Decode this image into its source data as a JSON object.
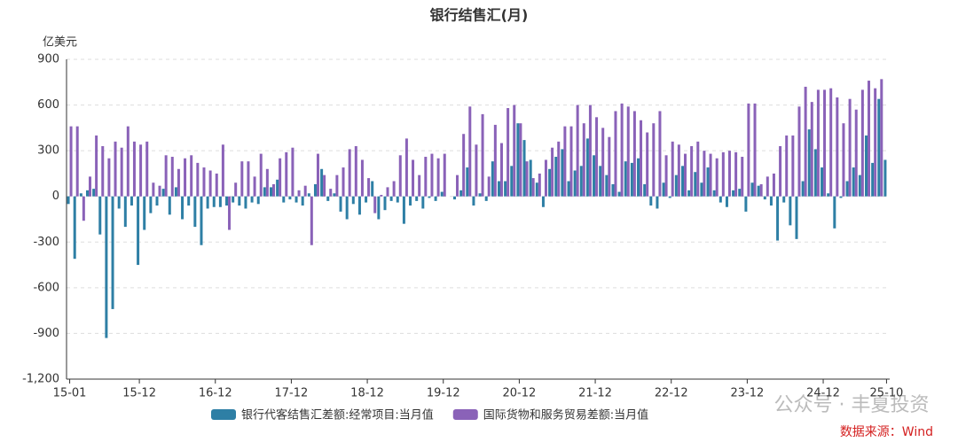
{
  "chart_data": {
    "type": "bar",
    "title": "银行结售汇(月)",
    "y_axis_label": "亿美元",
    "categories": [
      "15-01",
      null,
      null,
      null,
      null,
      null,
      null,
      null,
      null,
      null,
      null,
      "15-12",
      null,
      null,
      null,
      null,
      null,
      null,
      null,
      null,
      null,
      null,
      null,
      "16-12",
      null,
      null,
      null,
      null,
      null,
      null,
      null,
      null,
      null,
      null,
      null,
      "17-12",
      null,
      null,
      null,
      null,
      null,
      null,
      null,
      null,
      null,
      null,
      null,
      "18-12",
      null,
      null,
      null,
      null,
      null,
      null,
      null,
      null,
      null,
      null,
      null,
      "19-12",
      null,
      null,
      null,
      null,
      null,
      null,
      null,
      null,
      null,
      null,
      null,
      "20-12",
      null,
      null,
      null,
      null,
      null,
      null,
      null,
      null,
      null,
      null,
      null,
      "21-12",
      null,
      null,
      null,
      null,
      null,
      null,
      null,
      null,
      null,
      null,
      null,
      "22-12",
      null,
      null,
      null,
      null,
      null,
      null,
      null,
      null,
      null,
      null,
      null,
      "23-12",
      null,
      null,
      null,
      null,
      null,
      null,
      null,
      null,
      null,
      null,
      null,
      "24-12",
      null,
      null,
      null,
      null,
      null,
      null,
      null,
      null,
      null,
      "25-10"
    ],
    "series": [
      {
        "name": "银行代客结售汇差额:经常项目:当月值",
        "color": "#2e7fa5",
        "values": [
          -50,
          -410,
          20,
          40,
          50,
          -250,
          -930,
          -740,
          -80,
          -200,
          -60,
          -450,
          -220,
          -110,
          -60,
          50,
          -120,
          60,
          -150,
          -60,
          -200,
          -320,
          -80,
          -70,
          -70,
          -60,
          -40,
          -60,
          -80,
          -40,
          -50,
          60,
          60,
          110,
          -40,
          -20,
          -40,
          -60,
          20,
          80,
          180,
          -30,
          20,
          -100,
          -150,
          -50,
          -120,
          -40,
          100,
          -150,
          -90,
          -30,
          -40,
          -180,
          -60,
          -30,
          -80,
          -10,
          -30,
          30,
          0,
          -20,
          40,
          190,
          -60,
          20,
          -30,
          230,
          100,
          100,
          200,
          480,
          370,
          240,
          90,
          -70,
          180,
          260,
          310,
          100,
          170,
          200,
          380,
          270,
          200,
          140,
          80,
          30,
          230,
          220,
          250,
          80,
          -60,
          -80,
          90,
          -10,
          140,
          200,
          40,
          160,
          90,
          190,
          40,
          -40,
          -70,
          40,
          50,
          -100,
          90,
          70,
          -20,
          -60,
          -290,
          -40,
          -190,
          -280,
          100,
          440,
          310,
          190,
          20,
          -210,
          -10,
          100,
          190,
          140,
          400,
          220,
          640,
          240
        ]
      },
      {
        "name": "国际货物和服务贸易差额:当月值",
        "color": "#8a62b8",
        "values": [
          460,
          460,
          -160,
          130,
          400,
          330,
          250,
          360,
          320,
          460,
          360,
          340,
          360,
          90,
          70,
          270,
          260,
          180,
          250,
          270,
          220,
          190,
          170,
          150,
          340,
          -220,
          90,
          230,
          230,
          130,
          280,
          180,
          80,
          250,
          290,
          320,
          40,
          70,
          -320,
          280,
          140,
          50,
          140,
          190,
          310,
          330,
          240,
          120,
          -110,
          10,
          60,
          100,
          270,
          380,
          240,
          140,
          260,
          280,
          250,
          280,
          0,
          140,
          410,
          590,
          340,
          540,
          130,
          470,
          350,
          580,
          600,
          480,
          230,
          120,
          150,
          240,
          320,
          360,
          460,
          460,
          600,
          480,
          600,
          520,
          450,
          390,
          560,
          610,
          590,
          560,
          500,
          420,
          480,
          560,
          270,
          360,
          340,
          280,
          330,
          360,
          300,
          280,
          250,
          290,
          300,
          290,
          260,
          610,
          610,
          80,
          130,
          150,
          330,
          400,
          400,
          590,
          720,
          620,
          700,
          700,
          710,
          650,
          480,
          640,
          570,
          700,
          760,
          710,
          770,
          null
        ]
      }
    ],
    "ylim": [
      -1200,
      900
    ],
    "yticks": [
      900,
      600,
      300,
      0,
      -300,
      -600,
      -900,
      {
        "value": -1200,
        "label": "-1,200"
      }
    ],
    "grid": true,
    "legend_position": "bottom",
    "watermark": "公众号 · 丰夏投资",
    "source": "数据来源：Wind"
  }
}
